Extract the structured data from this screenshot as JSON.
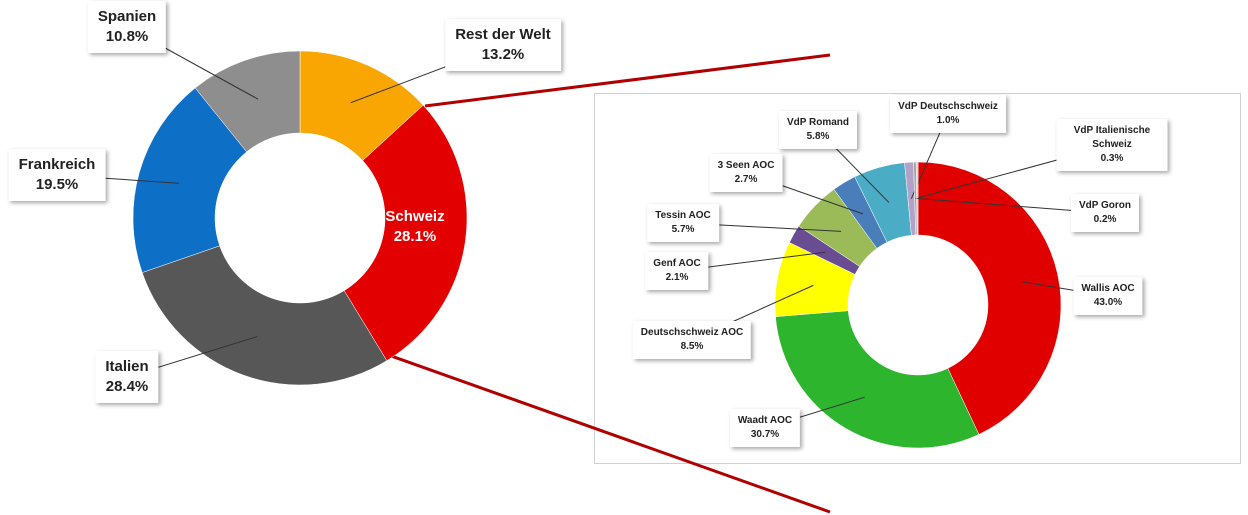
{
  "chart_data": [
    {
      "type": "donut",
      "categories": [
        "Rest der Welt",
        "Schweiz",
        "Italien",
        "Frankreich",
        "Spanien"
      ],
      "values": [
        13.2,
        28.1,
        28.4,
        19.5,
        10.8
      ],
      "value_labels": [
        "13.2%",
        "28.1%",
        "28.4%",
        "19.5%",
        "10.8%"
      ],
      "colors": [
        "#f9a602",
        "#e30000",
        "#575757",
        "#0e6fc7",
        "#8e8e8e"
      ]
    },
    {
      "type": "donut",
      "categories": [
        "Wallis AOC",
        "Waadt AOC",
        "Deutschschweiz AOC",
        "Genf AOC",
        "Tessin AOC",
        "3 Seen AOC",
        "VdP Romand",
        "VdP Deutschschweiz",
        "VdP Italienische Schweiz",
        "VdP Goron"
      ],
      "values": [
        43.0,
        30.7,
        8.5,
        2.1,
        5.7,
        2.7,
        5.8,
        1.0,
        0.3,
        0.2
      ],
      "value_labels": [
        "43.0%",
        "30.7%",
        "8.5%",
        "2.1%",
        "5.7%",
        "2.7%",
        "5.8%",
        "1.0%",
        "0.3%",
        "0.2%"
      ],
      "colors": [
        "#e00000",
        "#2db52d",
        "#ffff00",
        "#6a4c93",
        "#9bbb59",
        "#4a7ebb",
        "#4bacc6",
        "#b3a2c7",
        "#a6a6a6",
        "#cccccc"
      ]
    }
  ]
}
